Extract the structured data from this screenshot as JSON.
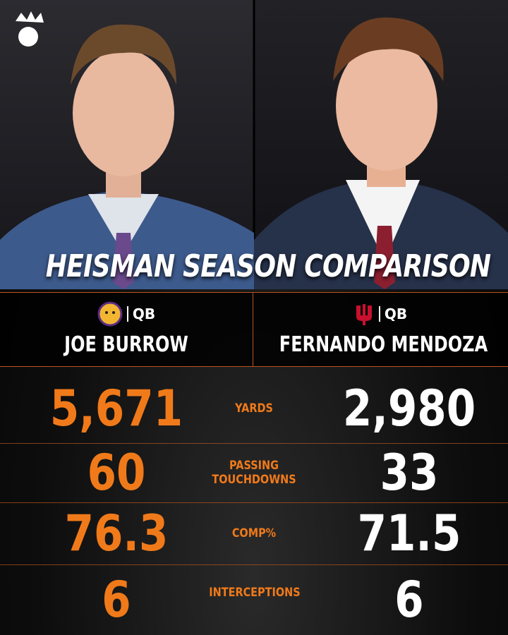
{
  "title": "HEISMAN SEASON COMPARISON",
  "players": [
    {
      "position": "QB",
      "name": "JOE BURROW"
    },
    {
      "position": "QB",
      "name": "FERNANDO MENDOZA"
    }
  ],
  "stats": [
    {
      "label": "YARDS",
      "left": "5,671",
      "right": "2,980"
    },
    {
      "label": "PASSING TOUCHDOWNS",
      "left": "60",
      "right": "33"
    },
    {
      "label": "COMP%",
      "left": "76.3",
      "right": "71.5"
    },
    {
      "label": "INTERCEPTIONS",
      "left": "6",
      "right": "6"
    }
  ]
}
